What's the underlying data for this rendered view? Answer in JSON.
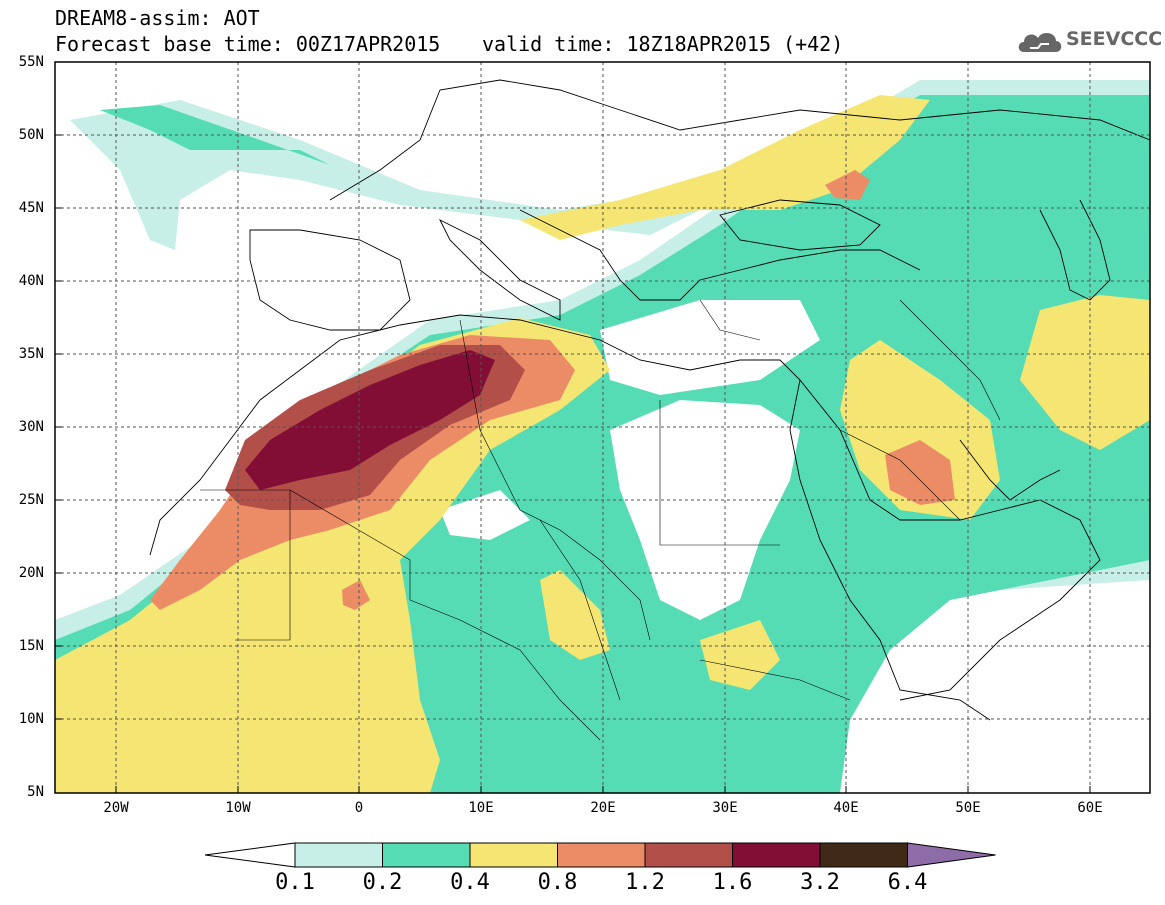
{
  "title": {
    "line1": "DREAM8-assim: AOT",
    "base_time": "Forecast base time: 00Z17APR2015",
    "valid_time": "valid time: 18Z18APR2015 (+42)"
  },
  "logo": {
    "text": "SEEVCCC",
    "icon": "cloud-icon"
  },
  "map": {
    "lat_labels": [
      "55N",
      "50N",
      "45N",
      "40N",
      "35N",
      "30N",
      "25N",
      "20N",
      "15N",
      "10N",
      "5N"
    ],
    "lon_labels": [
      "20W",
      "10W",
      "0",
      "10E",
      "20E",
      "30E",
      "40E",
      "50E",
      "60E"
    ],
    "grid": true
  },
  "colorbar": {
    "labels": [
      "0.1",
      "0.2",
      "0.4",
      "0.8",
      "1.2",
      "1.6",
      "3.2",
      "6.4"
    ],
    "colors": [
      "#ffffff",
      "#c7efe7",
      "#55dcb4",
      "#f5e573",
      "#ec8c66",
      "#b24f49",
      "#820e36",
      "#402917",
      "#8e6ca8"
    ]
  }
}
